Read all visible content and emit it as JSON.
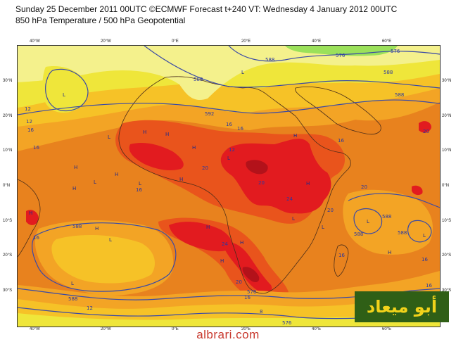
{
  "header": {
    "line1": "Sunday 25 December 2011 00UTC ©ECMWF Forecast t+240 VT: Wednesday 4 January 2012 00UTC",
    "line2": "850 hPa Temperature / 500 hPa Geopotential"
  },
  "axes": {
    "longitude_labels": [
      "40°W",
      "20°W",
      "0°E",
      "20°E",
      "40°E",
      "60°E"
    ],
    "latitude_labels": [
      "30°N",
      "20°N",
      "10°N",
      "0°N",
      "10°S",
      "20°S",
      "30°S"
    ]
  },
  "contour_labels": {
    "geopotential": [
      "588",
      "576",
      "576",
      "588",
      "588",
      "588",
      "592",
      "588",
      "588",
      "588",
      "588",
      "576",
      "576",
      "588"
    ],
    "temperature": [
      "12",
      "16",
      "16",
      "16",
      "12",
      "16",
      "16",
      "20",
      "20",
      "16",
      "20",
      "20",
      "16",
      "24",
      "20",
      "20",
      "16",
      "12",
      "8",
      "16",
      "16",
      "16",
      "12",
      "24"
    ]
  },
  "pressure_markers": [
    "L",
    "L",
    "H",
    "H",
    "L",
    "H",
    "H",
    "H",
    "L",
    "H",
    "L",
    "L",
    "H",
    "H",
    "H",
    "L",
    "H",
    "L",
    "L",
    "H",
    "L",
    "H",
    "H",
    "L",
    "L",
    "H",
    "H"
  ],
  "logo_text": "أبو ميعاد",
  "watermark": "albrari.com",
  "colors": {
    "frame_border": "#333333",
    "band_yellow_pale": "#f4f18c",
    "band_yellow": "#efe63a",
    "band_light_orange": "#f6c227",
    "band_orange": "#f3a425",
    "band_deep_orange": "#e8821e",
    "band_red_orange": "#e9541c",
    "band_red": "#e21b1f",
    "band_dark_red": "#b3121a",
    "green_cold": "#9be15a",
    "contour_line": "#3a4aa6",
    "coastline": "#4a2d1a",
    "logo_bg": "#2f5f16",
    "logo_fg": "#f1d21a",
    "watermark": "#c8382d"
  }
}
